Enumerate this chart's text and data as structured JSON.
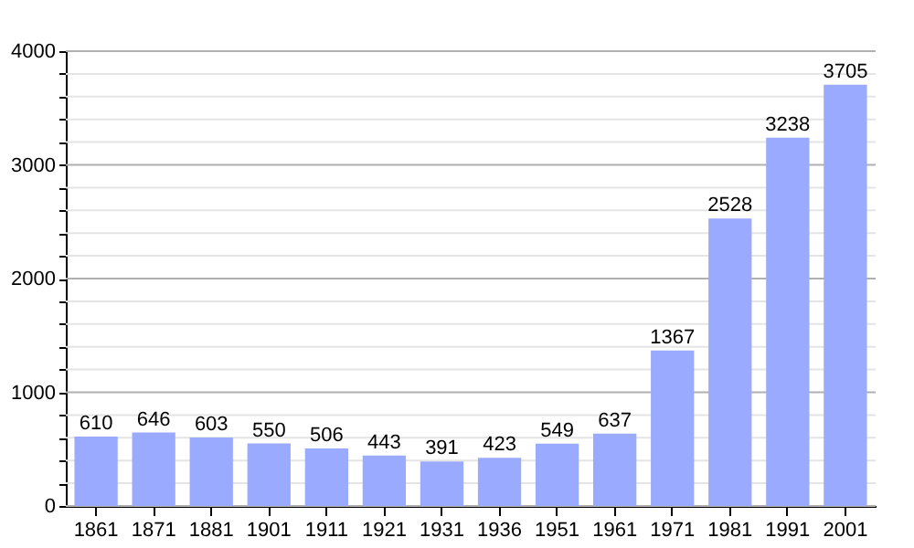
{
  "chart_data": {
    "type": "bar",
    "categories": [
      "1861",
      "1871",
      "1881",
      "1901",
      "1911",
      "1921",
      "1931",
      "1936",
      "1951",
      "1961",
      "1971",
      "1981",
      "1991",
      "2001"
    ],
    "values": [
      610,
      646,
      603,
      550,
      506,
      443,
      391,
      423,
      549,
      637,
      1367,
      2528,
      3238,
      3705
    ],
    "color": "#9aaaff",
    "ylim": [
      0,
      4000
    ],
    "yticks": [
      0,
      {
        "value": 200,
        "label": null
      },
      {
        "value": 400,
        "label": null
      },
      {
        "value": 600,
        "label": null
      },
      {
        "value": 800,
        "label": null
      },
      1000,
      {
        "value": 1200,
        "label": null
      },
      {
        "value": 1400,
        "label": null
      },
      {
        "value": 1600,
        "label": null
      },
      {
        "value": 1800,
        "label": null
      },
      2000,
      {
        "value": 2200,
        "label": null
      },
      {
        "value": 2400,
        "label": null
      },
      {
        "value": 2600,
        "label": null
      },
      {
        "value": 2800,
        "label": null
      },
      3000,
      {
        "value": 3200,
        "label": null
      },
      {
        "value": 3400,
        "label": null
      },
      {
        "value": 3600,
        "label": null
      },
      {
        "value": 3800,
        "label": null
      },
      4000
    ],
    "grid": true,
    "data_labels": true
  }
}
